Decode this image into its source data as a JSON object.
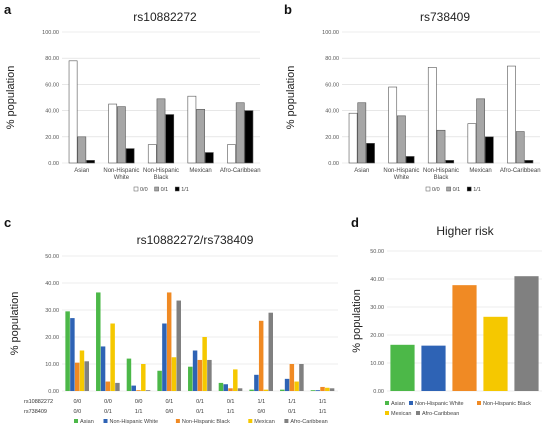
{
  "panels": {
    "a": {
      "letter": "a"
    },
    "b": {
      "letter": "b"
    },
    "c": {
      "letter": "c"
    },
    "d": {
      "letter": "d"
    }
  },
  "chart_data": [
    {
      "id": "a",
      "type": "bar",
      "title": "rs10882272",
      "ylabel": "% population",
      "ylim": [
        0,
        100
      ],
      "yticks": [
        "0.00",
        "20.00",
        "40.00",
        "60.00",
        "80.00",
        "100.00"
      ],
      "categories": [
        "Asian",
        "Non-Hispanic White",
        "Non-Hispanic Black",
        "Mexican",
        "Afro-Caribbean"
      ],
      "category_lines": [
        [
          "Asian"
        ],
        [
          "Non-Hispanic",
          "White"
        ],
        [
          "Non-Hispanic",
          "Black"
        ],
        [
          "Mexican"
        ],
        [
          "Afro-Caribbean"
        ]
      ],
      "legend_position": "bottom",
      "series": [
        {
          "name": "0/0",
          "color": "#ffffff",
          "values": [
            78,
            45,
            14,
            51,
            14
          ]
        },
        {
          "name": "0/1",
          "color": "#a6a6a6",
          "values": [
            20,
            43,
            49,
            41,
            46
          ]
        },
        {
          "name": "1/1",
          "color": "#000000",
          "values": [
            2,
            11,
            37,
            8,
            40
          ]
        }
      ]
    },
    {
      "id": "b",
      "type": "bar",
      "title": "rs738409",
      "ylabel": "% population",
      "ylim": [
        0,
        100
      ],
      "yticks": [
        "0.00",
        "20.00",
        "40.00",
        "60.00",
        "80.00",
        "100.00"
      ],
      "categories": [
        "Asian",
        "Non-Hispanic White",
        "Non-Hispanic Black",
        "Mexican",
        "Afro-Caribbean"
      ],
      "category_lines": [
        [
          "Asian"
        ],
        [
          "Non-Hispanic",
          "White"
        ],
        [
          "Non-Hispanic",
          "Black"
        ],
        [
          "Mexican"
        ],
        [
          "Afro-Caribbean"
        ]
      ],
      "legend_position": "bottom",
      "series": [
        {
          "name": "0/0",
          "color": "#ffffff",
          "values": [
            38,
            58,
            73,
            30,
            74
          ]
        },
        {
          "name": "0/1",
          "color": "#a6a6a6",
          "values": [
            46,
            36,
            25,
            49,
            24
          ]
        },
        {
          "name": "1/1",
          "color": "#000000",
          "values": [
            15,
            5,
            2,
            20,
            2
          ]
        }
      ]
    },
    {
      "id": "c",
      "type": "bar",
      "title": "rs10882272/rs738409",
      "ylabel": "% population",
      "ylim": [
        0,
        50
      ],
      "yticks": [
        "0.00",
        "10.00",
        "20.00",
        "30.00",
        "40.00",
        "50.00"
      ],
      "row_labels": [
        "rs10882272",
        "rs738409"
      ],
      "categories_row1": [
        "0/0",
        "0/0",
        "0/0",
        "0/1",
        "0/1",
        "0/1",
        "1/1",
        "1/1",
        "1/1"
      ],
      "categories_row2": [
        "0/0",
        "0/1",
        "1/1",
        "0/0",
        "0/1",
        "1/1",
        "0/0",
        "0/1",
        "1/1"
      ],
      "legend_position": "bottom",
      "series": [
        {
          "name": "Asian",
          "color": "#4cb848",
          "values": [
            29.5,
            36.5,
            12,
            7.5,
            9,
            3,
            0.5,
            0.5,
            0.3
          ]
        },
        {
          "name": "Non-Hispanic White",
          "color": "#2e63b5",
          "values": [
            27,
            16.5,
            2,
            25,
            15,
            2.5,
            6,
            4.5,
            0.3
          ]
        },
        {
          "name": "Non-Hispanic Black",
          "color": "#f08a24",
          "values": [
            10.5,
            3.5,
            0.3,
            36.5,
            11.5,
            1,
            26,
            10,
            1.5
          ]
        },
        {
          "name": "Mexican",
          "color": "#f5c800",
          "values": [
            15,
            25,
            10,
            12.5,
            20,
            8,
            0.5,
            3.5,
            1.2
          ]
        },
        {
          "name": "Afro-Caribbean",
          "color": "#808080",
          "values": [
            11,
            3,
            0.3,
            33.5,
            11.5,
            1,
            29,
            10,
            1
          ]
        }
      ]
    },
    {
      "id": "d",
      "type": "bar",
      "title": "Higher risk",
      "ylabel": "% population",
      "ylim": [
        0,
        50
      ],
      "yticks": [
        "0.00",
        "10.00",
        "20.00",
        "30.00",
        "40.00",
        "50.00"
      ],
      "legend_position": "bottom",
      "series": [
        {
          "name": "Asian",
          "color": "#4cb848",
          "values": [
            16.5
          ]
        },
        {
          "name": "Non-Hispanic White",
          "color": "#2e63b5",
          "values": [
            16.2
          ]
        },
        {
          "name": "Non-Hispanic Black",
          "color": "#f08a24",
          "values": [
            37.8
          ]
        },
        {
          "name": "Mexican",
          "color": "#f5c800",
          "values": [
            26.5
          ]
        },
        {
          "name": "Afro-Caribbean",
          "color": "#808080",
          "values": [
            41
          ]
        }
      ]
    }
  ]
}
